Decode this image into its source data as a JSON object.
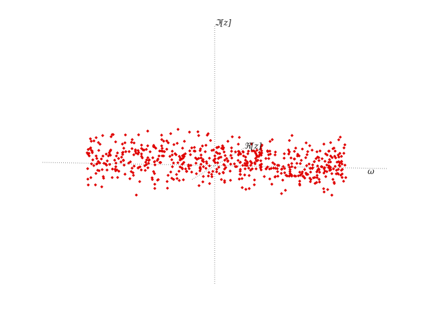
{
  "chart_data": {
    "type": "scatter",
    "title": "",
    "axes": {
      "vertical": {
        "label": "ℑ[z]"
      },
      "depth": {
        "label": "ℜ[z]"
      },
      "horizontal": {
        "label": "ω"
      }
    },
    "grid": false,
    "legend": false,
    "colors": {
      "points": "#e00000",
      "axes": "#888888"
    },
    "point_count_estimate": 600,
    "series": [
      {
        "values_approximate": true,
        "points": [
          [
            -0.96,
            0.14
          ],
          [
            -0.93,
            0.34
          ],
          [
            -0.88,
            0.37
          ],
          [
            -0.85,
            -0.02
          ],
          [
            -0.82,
            0.11
          ],
          [
            -0.78,
            0.29
          ],
          [
            -0.72,
            0.05
          ],
          [
            -0.66,
            -0.1
          ],
          [
            -0.62,
            -0.41
          ],
          [
            -0.58,
            0.21
          ],
          [
            -0.52,
            0.06
          ],
          [
            -0.48,
            -0.12
          ],
          [
            -0.44,
            0.18
          ],
          [
            -0.38,
            -0.31
          ],
          [
            -0.33,
            0.27
          ],
          [
            -0.28,
            0.09
          ],
          [
            -0.24,
            -0.05
          ],
          [
            -0.21,
            0.44
          ],
          [
            -0.16,
            0.03
          ],
          [
            -0.11,
            0.26
          ],
          [
            -0.06,
            -0.09
          ],
          [
            0.02,
            0.11
          ],
          [
            0.07,
            -0.02
          ],
          [
            0.12,
            0.39
          ],
          [
            0.18,
            0.05
          ],
          [
            0.24,
            0.17
          ],
          [
            0.29,
            -0.24
          ],
          [
            0.34,
            0.08
          ],
          [
            0.41,
            0.21
          ],
          [
            0.47,
            -0.06
          ],
          [
            0.52,
            0.12
          ],
          [
            0.58,
            0.01
          ],
          [
            0.63,
            -0.11
          ],
          [
            0.69,
            0.33
          ],
          [
            0.74,
            0.04
          ],
          [
            0.79,
            -0.15
          ],
          [
            0.84,
            0.19
          ],
          [
            0.88,
            -0.02
          ],
          [
            0.91,
            0.16
          ],
          [
            0.95,
            0.03
          ]
        ]
      }
    ]
  }
}
